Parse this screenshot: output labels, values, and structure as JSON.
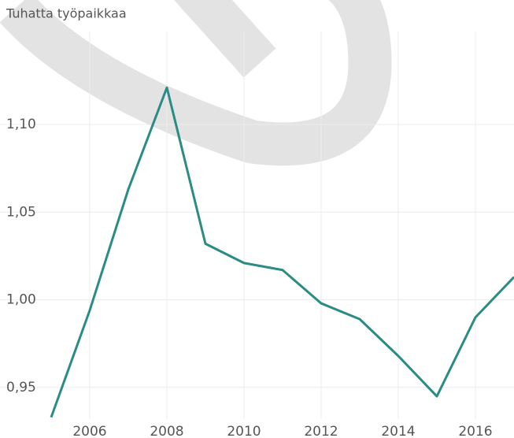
{
  "chart_data": {
    "type": "line",
    "title": "Tuhatta työpaikkaa",
    "x": [
      2005,
      2006,
      2007,
      2008,
      2009,
      2010,
      2011,
      2012,
      2013,
      2014,
      2015,
      2016,
      2017
    ],
    "series": [
      {
        "color": "#2a8c84",
        "values": [
          0.933,
          0.994,
          1.063,
          1.121,
          1.032,
          1.021,
          1.017,
          0.998,
          0.989,
          0.968,
          0.945,
          0.99,
          1.013
        ]
      }
    ],
    "xlim": [
      2005,
      2017
    ],
    "xticks": [
      2006,
      2008,
      2010,
      2012,
      2014,
      2016
    ],
    "ylim": [
      0.932,
      1.153
    ],
    "yticks": [
      {
        "value": 0.95,
        "label": "0,95"
      },
      {
        "value": 1.0,
        "label": "1,00"
      },
      {
        "value": 1.05,
        "label": "1,05"
      },
      {
        "value": 1.1,
        "label": "1,10"
      }
    ],
    "grid": true
  }
}
